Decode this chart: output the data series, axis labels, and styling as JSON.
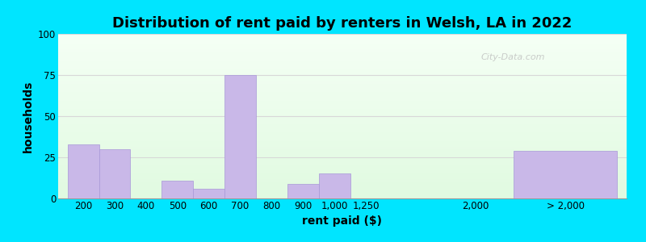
{
  "title": "Distribution of rent paid by renters in Welsh, LA in 2022",
  "xlabel": "rent paid ($)",
  "ylabel": "households",
  "ylim": [
    0,
    100
  ],
  "yticks": [
    0,
    25,
    50,
    75,
    100
  ],
  "bar_labels": [
    "200",
    "300",
    "400",
    "500",
    "600",
    "700",
    "800",
    "900",
    "1,000",
    "1,250",
    "2,000",
    "> 2,000"
  ],
  "bar_values": [
    33,
    30,
    0,
    11,
    6,
    75,
    0,
    9,
    15,
    0,
    0,
    29
  ],
  "bar_positions": [
    0,
    1,
    2,
    3,
    4,
    5,
    6,
    7,
    8,
    9,
    13,
    14.2
  ],
  "bar_widths": [
    1,
    1,
    1,
    1,
    1,
    1,
    1,
    1,
    1,
    1,
    0.001,
    3.3
  ],
  "tick_pos": [
    0.5,
    1.5,
    2.5,
    3.5,
    4.5,
    5.5,
    6.5,
    7.5,
    8.5,
    9.5,
    13,
    15.85
  ],
  "bar_color": "#c9b8e8",
  "bar_edge_color": "#a898d8",
  "outer_bg": "#00e5ff",
  "plot_bg_top": "#e8f8e8",
  "plot_bg_bottom": "#f8fff8",
  "grid_color": "#d8d8d8",
  "title_fontsize": 13,
  "axis_label_fontsize": 10,
  "tick_fontsize": 8.5,
  "watermark": "City-Data.com"
}
